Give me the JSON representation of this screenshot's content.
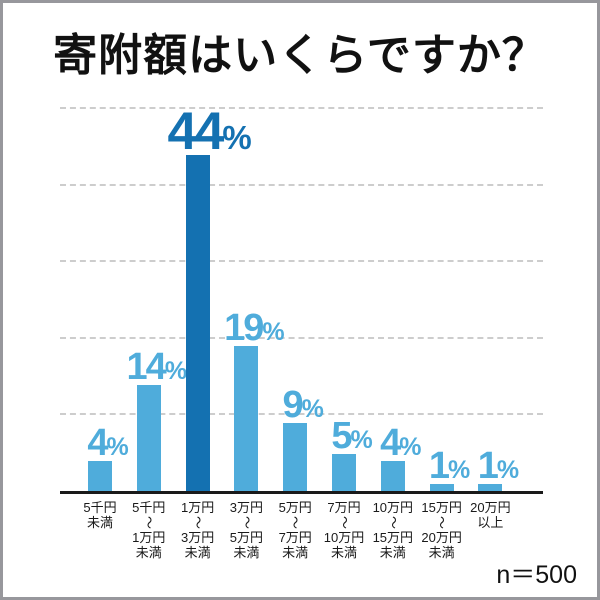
{
  "title": "寄附額はいくらですか？",
  "sample_size_label": "n＝500",
  "chart_data": {
    "type": "bar",
    "title": "寄附額はいくらですか？",
    "categories": [
      "5千円未満",
      "5千円～1万円未満",
      "1万円～3万円未満",
      "3万円～5万円未満",
      "5万円～7万円未満",
      "7万円～10万円未満",
      "10万円～15万円未満",
      "15万円～20万円未満",
      "20万円以上"
    ],
    "category_lines": [
      [
        "5千円",
        "未満"
      ],
      [
        "5千円",
        "～",
        "1万円",
        "未満"
      ],
      [
        "1万円",
        "～",
        "3万円",
        "未満"
      ],
      [
        "3万円",
        "～",
        "5万円",
        "未満"
      ],
      [
        "5万円",
        "～",
        "7万円",
        "未満"
      ],
      [
        "7万円",
        "～",
        "10万円",
        "未満"
      ],
      [
        "10万円",
        "～",
        "15万円",
        "未満"
      ],
      [
        "15万円",
        "～",
        "20万円",
        "未満"
      ],
      [
        "20万円",
        "以上"
      ]
    ],
    "values": [
      4,
      14,
      44,
      19,
      9,
      5,
      4,
      1,
      1
    ],
    "unit": "%",
    "highlight_index": 2,
    "n": 500,
    "xlabel": "",
    "ylabel": "",
    "ylim": [
      0,
      50.8
    ],
    "gridline_percents": [
      10,
      20,
      30,
      40,
      50
    ],
    "grid": "horizontal-dashed",
    "legend": "none",
    "colors": {
      "bar": "#4FACDB",
      "bar_highlight": "#1471B1",
      "gridline": "#cdcdcd",
      "axis": "#1a1a1a",
      "title_text": "#111111",
      "tick_text": "#1a1a1a",
      "border": "#97979c"
    }
  }
}
